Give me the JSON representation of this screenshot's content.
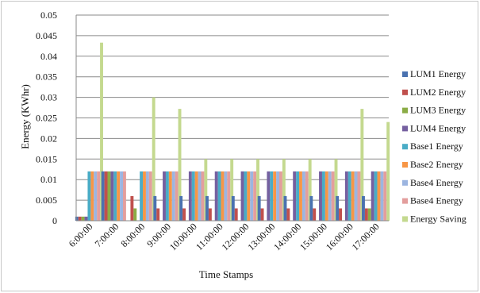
{
  "chart_data": {
    "type": "bar",
    "title": "",
    "xlabel": "Time Stamps",
    "ylabel": "Energy (KWhr)",
    "ylim": [
      0,
      0.05
    ],
    "yticks": [
      "0",
      "0.005",
      "0.01",
      "0.015",
      "0.02",
      "0.025",
      "0.03",
      "0.035",
      "0.04",
      "0.045",
      "0.05"
    ],
    "grid": "horizontal",
    "legend_position": "right",
    "categories": [
      "6:00:00",
      "7:00:00",
      "8:00:00",
      "9:00:00",
      "10:00:00",
      "11:00:00",
      "12:00:00",
      "13:00:00",
      "14:00:00",
      "15:00:00",
      "16:00:00",
      "17:00:00"
    ],
    "series": [
      {
        "name": "LUM1 Energy",
        "color": "#4a72b0",
        "values": [
          0.001,
          0.012,
          0,
          0.006,
          0.006,
          0.006,
          0.006,
          0.006,
          0.006,
          0.006,
          0.006,
          0.006
        ]
      },
      {
        "name": "LUM2 Energy",
        "color": "#c0504d",
        "values": [
          0.001,
          0.012,
          0.006,
          0.003,
          0.003,
          0.003,
          0.003,
          0.003,
          0.003,
          0.003,
          0.003,
          0.003
        ]
      },
      {
        "name": "LUM3 Energy",
        "color": "#8bac46",
        "values": [
          0.001,
          0.012,
          0.003,
          0,
          0,
          0,
          0,
          0,
          0,
          0,
          0,
          0.003
        ]
      },
      {
        "name": "LUM4 Energy",
        "color": "#7560a0",
        "values": [
          0.001,
          0.012,
          0,
          0.012,
          0.012,
          0.012,
          0.012,
          0.012,
          0.012,
          0.012,
          0.012,
          0.012
        ]
      },
      {
        "name": "Base1  Energy",
        "color": "#4aacc6",
        "values": [
          0.012,
          0.012,
          0.012,
          0.012,
          0.012,
          0.012,
          0.012,
          0.012,
          0.012,
          0.012,
          0.012,
          0.012
        ]
      },
      {
        "name": "Base2 Energy",
        "color": "#f79646",
        "values": [
          0.012,
          0.012,
          0.012,
          0.012,
          0.012,
          0.012,
          0.012,
          0.012,
          0.012,
          0.012,
          0.012,
          0.012
        ]
      },
      {
        "name": "Base4 Energy",
        "color": "#9cb5e0",
        "values": [
          0.012,
          0.012,
          0.012,
          0.012,
          0.012,
          0.012,
          0.012,
          0.012,
          0.012,
          0.012,
          0.012,
          0.012
        ]
      },
      {
        "name": "Base4 Energy",
        "color": "#e39e9d",
        "values": [
          0.012,
          0.012,
          0.012,
          0.012,
          0.012,
          0.012,
          0.012,
          0.012,
          0.012,
          0.012,
          0.012,
          0.012
        ]
      },
      {
        "name": "Energy Saving",
        "color": "#c4d98f",
        "values": [
          0.0433,
          0,
          0.03,
          0.0272,
          0.015,
          0.015,
          0.015,
          0.015,
          0.015,
          0.015,
          0.0272,
          0.024
        ]
      }
    ]
  }
}
